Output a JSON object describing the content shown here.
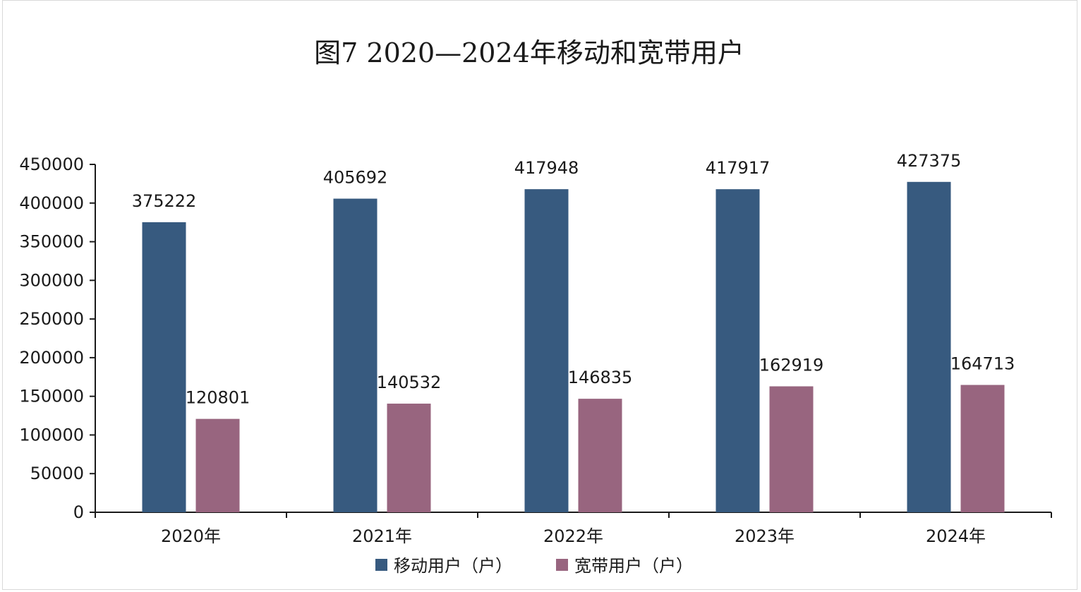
{
  "chart_data": {
    "type": "bar",
    "title": "图7  2020—2024年移动和宽带用户",
    "categories": [
      "2020年",
      "2021年",
      "2022年",
      "2023年",
      "2024年"
    ],
    "series": [
      {
        "name": "移动用户（户）",
        "values": [
          375222,
          405692,
          417948,
          417917,
          427375
        ],
        "color": "#375a7f"
      },
      {
        "name": "宽带用户（户）",
        "values": [
          120801,
          140532,
          146835,
          162919,
          164713
        ],
        "color": "#98657f"
      }
    ],
    "ylim": [
      0,
      450000
    ],
    "yticks": [
      "0",
      "50000",
      "100000",
      "150000",
      "200000",
      "250000",
      "300000",
      "350000",
      "400000",
      "450000"
    ],
    "grid": false,
    "legend": "bottom",
    "data_labels": true
  }
}
